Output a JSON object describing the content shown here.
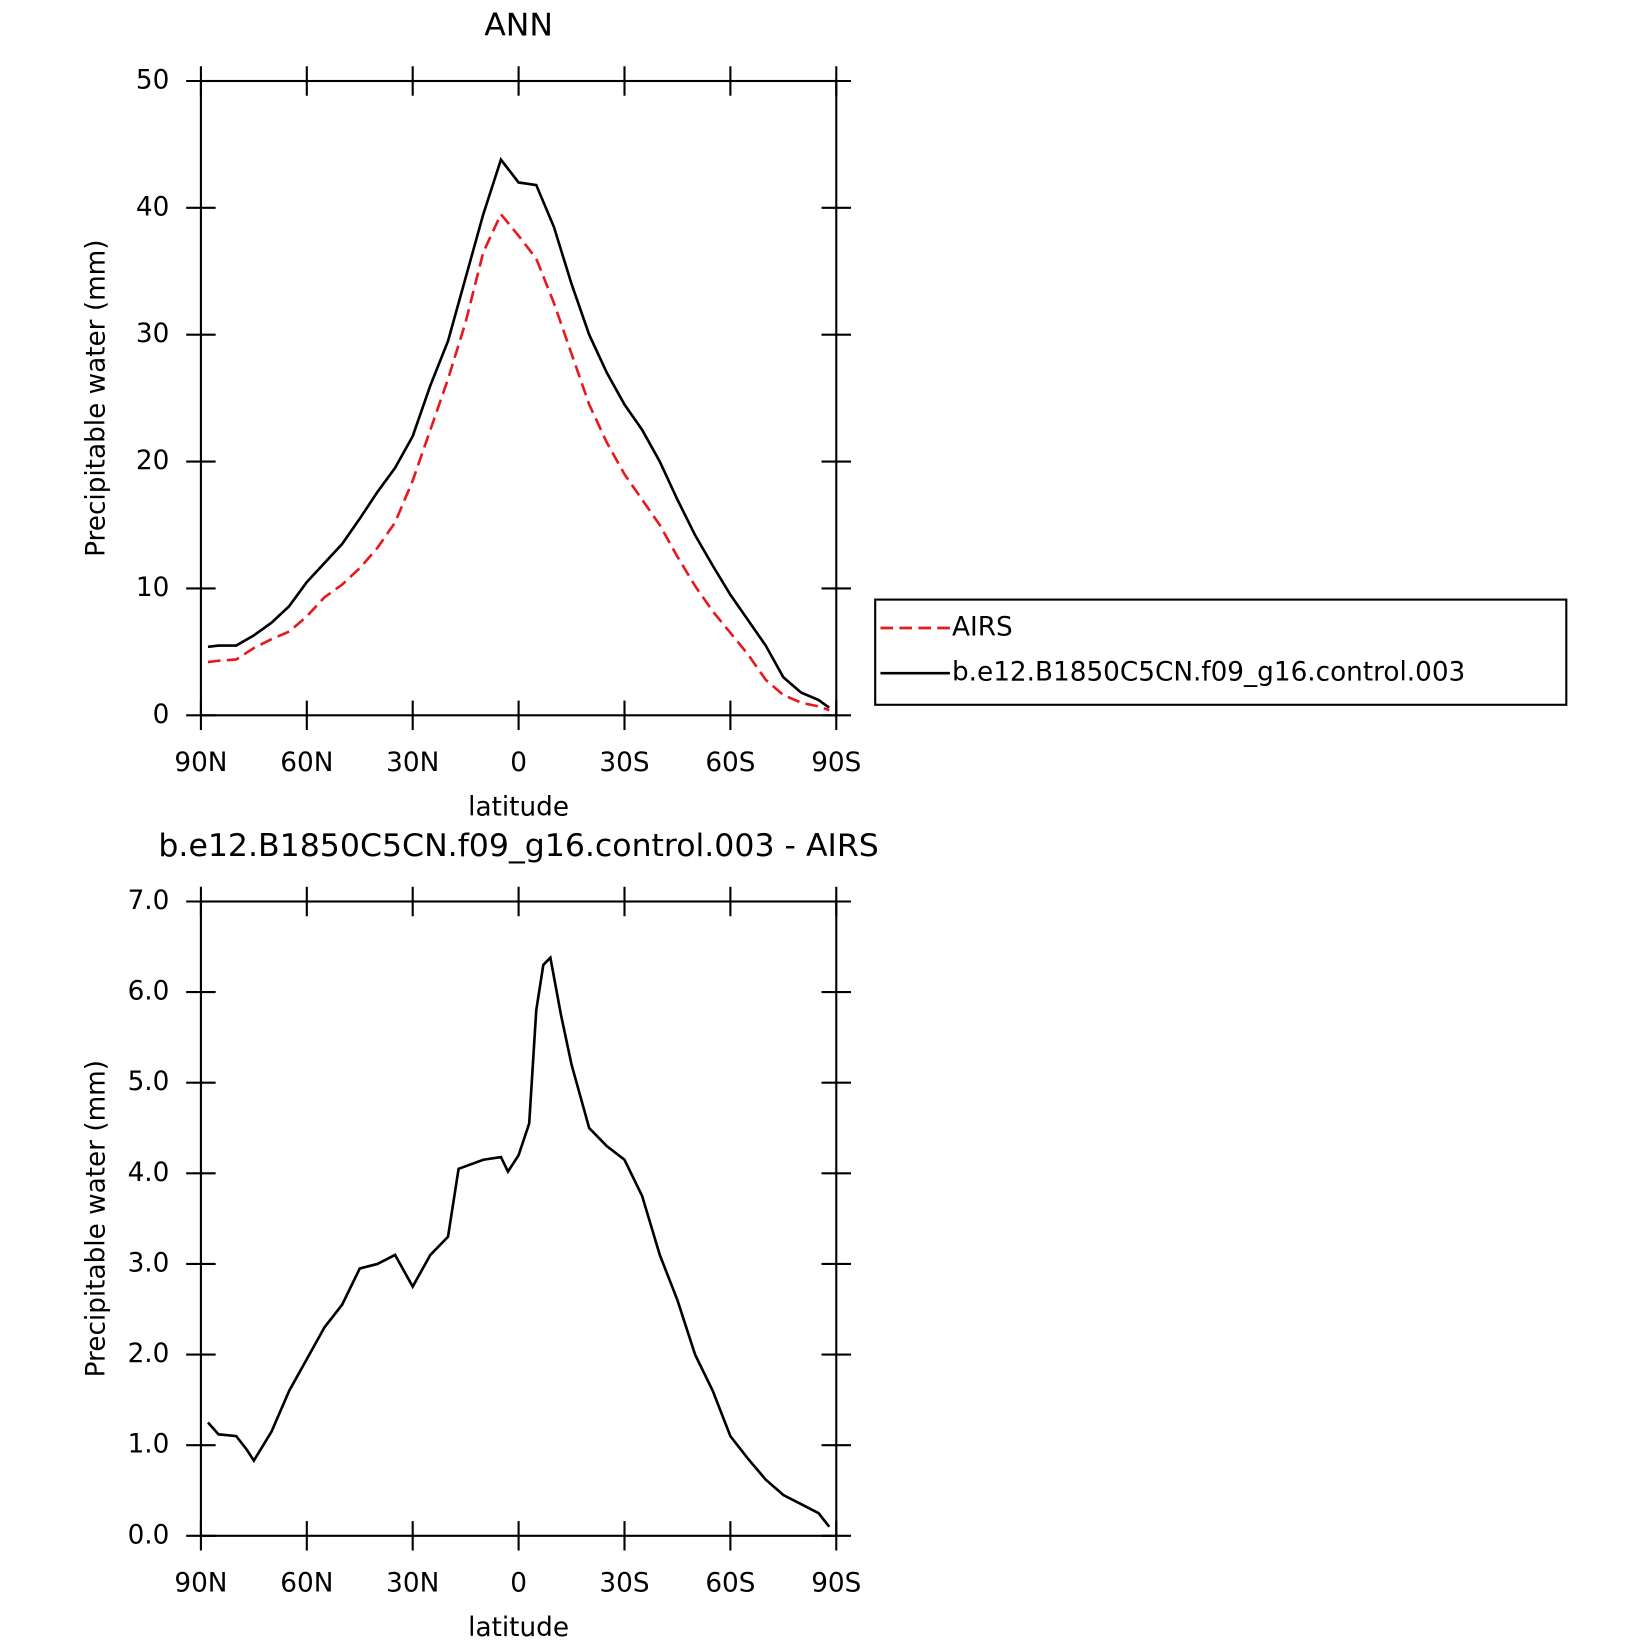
{
  "chart_data": [
    {
      "type": "line",
      "title": "ANN",
      "xlabel": "latitude",
      "ylabel": "Precipitable water (mm)",
      "xlim": [
        90,
        -90
      ],
      "ylim": [
        0,
        50
      ],
      "xticks": [
        {
          "value": 90,
          "label": "90N"
        },
        {
          "value": 60,
          "label": "60N"
        },
        {
          "value": 30,
          "label": "30N"
        },
        0,
        {
          "value": -30,
          "label": "30S"
        },
        {
          "value": -60,
          "label": "60S"
        },
        {
          "value": -90,
          "label": "90S"
        }
      ],
      "yticks": [
        0,
        10,
        20,
        30,
        40,
        50
      ],
      "legend": "right",
      "x": [
        88,
        85,
        80,
        75,
        70,
        65,
        60,
        55,
        50,
        45,
        40,
        35,
        30,
        25,
        20,
        15,
        10,
        5,
        0,
        -5,
        -10,
        -15,
        -20,
        -25,
        -30,
        -35,
        -40,
        -45,
        -50,
        -55,
        -60,
        -65,
        -70,
        -75,
        -80,
        -85,
        -88
      ],
      "series": [
        {
          "name": "AIRS",
          "color": "#e8191c",
          "line_style": "dashed",
          "values": [
            4.2,
            4.3,
            4.4,
            5.3,
            6.0,
            6.6,
            7.8,
            9.3,
            10.3,
            11.6,
            13.2,
            15.2,
            18.5,
            22.5,
            26.5,
            31.0,
            36.5,
            39.5,
            37.8,
            36.0,
            32.5,
            28.5,
            24.5,
            21.5,
            19.0,
            17.0,
            15.0,
            12.5,
            10.2,
            8.2,
            6.5,
            4.8,
            2.8,
            1.6,
            1.0,
            0.7,
            0.4
          ]
        },
        {
          "name": "b.e12.B1850C5CN.f09_g16.control.003",
          "color": "#000000",
          "line_style": "solid",
          "values": [
            5.4,
            5.5,
            5.5,
            6.3,
            7.3,
            8.6,
            10.5,
            12.0,
            13.5,
            15.5,
            17.6,
            19.5,
            22.0,
            26.0,
            29.5,
            34.5,
            39.5,
            43.8,
            42.0,
            41.8,
            38.5,
            34.0,
            30.0,
            27.0,
            24.5,
            22.5,
            20.0,
            17.0,
            14.2,
            11.8,
            9.5,
            7.5,
            5.5,
            3.0,
            1.8,
            1.2,
            0.6
          ]
        }
      ]
    },
    {
      "type": "line",
      "title": "b.e12.B1850C5CN.f09_g16.control.003 - AIRS",
      "xlabel": "latitude",
      "ylabel": "Precipitable water (mm)",
      "xlim": [
        90,
        -90
      ],
      "ylim": [
        0,
        7
      ],
      "xticks": [
        {
          "value": 90,
          "label": "90N"
        },
        {
          "value": 60,
          "label": "60N"
        },
        {
          "value": 30,
          "label": "30N"
        },
        0,
        {
          "value": -30,
          "label": "30S"
        },
        {
          "value": -60,
          "label": "60S"
        },
        {
          "value": -90,
          "label": "90S"
        }
      ],
      "yticks": [
        {
          "value": 0,
          "label": "0.0"
        },
        {
          "value": 1,
          "label": "1.0"
        },
        {
          "value": 2,
          "label": "2.0"
        },
        {
          "value": 3,
          "label": "3.0"
        },
        {
          "value": 4,
          "label": "4.0"
        },
        {
          "value": 5,
          "label": "5.0"
        },
        {
          "value": 6,
          "label": "6.0"
        },
        {
          "value": 7,
          "label": "7.0"
        }
      ],
      "x": [
        88,
        85,
        80,
        77,
        75,
        70,
        65,
        60,
        55,
        50,
        45,
        40,
        35,
        30,
        25,
        20,
        17,
        10,
        5,
        3,
        0,
        -3,
        -5,
        -7,
        -9,
        -12,
        -15,
        -20,
        -25,
        -30,
        -35,
        -40,
        -45,
        -50,
        -55,
        -60,
        -65,
        -70,
        -75,
        -80,
        -85,
        -88
      ],
      "series": [
        {
          "color": "#000000",
          "line_style": "solid",
          "values": [
            1.25,
            1.12,
            1.1,
            0.95,
            0.83,
            1.15,
            1.6,
            1.95,
            2.3,
            2.55,
            2.95,
            3.0,
            3.1,
            2.75,
            3.1,
            3.3,
            4.05,
            4.15,
            4.18,
            4.02,
            4.2,
            4.55,
            5.8,
            6.3,
            6.38,
            5.75,
            5.2,
            4.5,
            4.3,
            4.15,
            3.75,
            3.1,
            2.6,
            2.0,
            1.6,
            1.1,
            0.85,
            0.62,
            0.45,
            0.35,
            0.25,
            0.1
          ]
        }
      ]
    }
  ]
}
